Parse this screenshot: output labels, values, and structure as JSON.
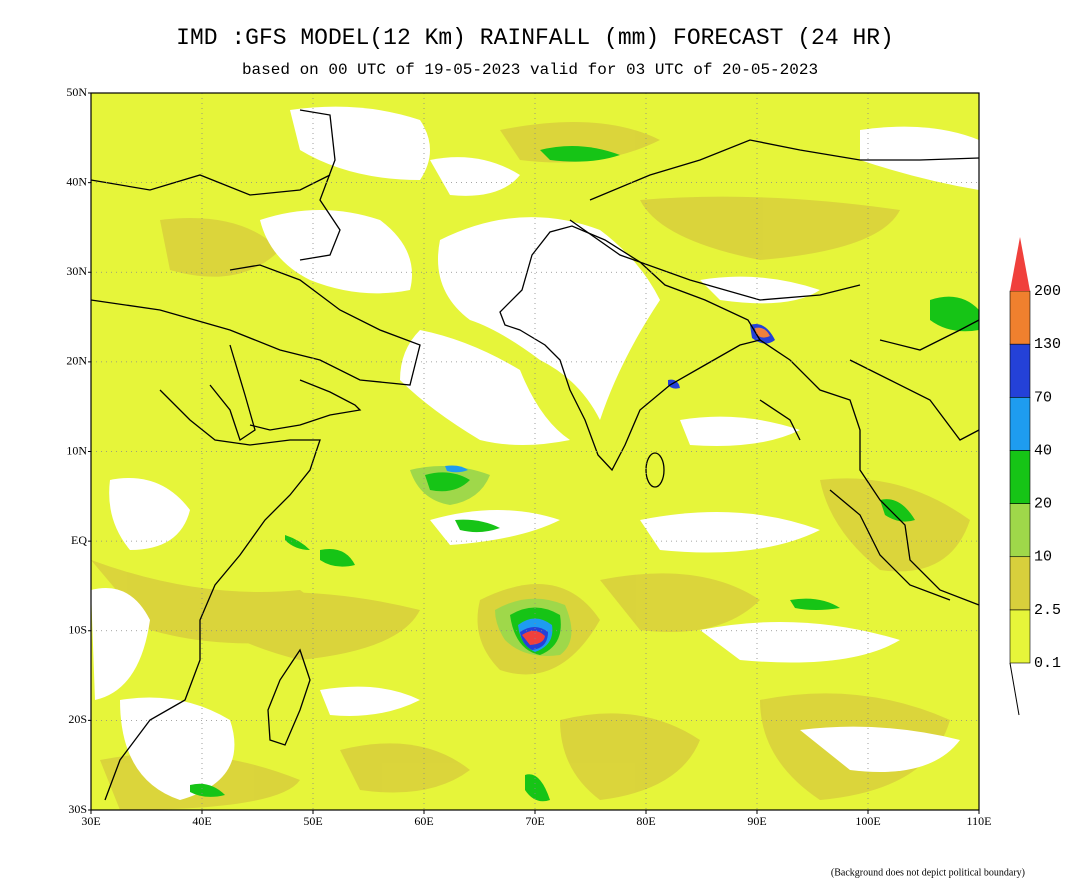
{
  "header": {
    "title": "IMD :GFS MODEL(12 Km) RAINFALL (mm) FORECAST (24 HR)",
    "subtitle": "based on 00 UTC of 19-05-2023 valid for 03 UTC of 20-05-2023"
  },
  "map": {
    "lon_labels": [
      "30E",
      "40E",
      "50E",
      "60E",
      "70E",
      "80E",
      "90E",
      "100E",
      "110E"
    ],
    "lat_labels": [
      "50N",
      "40N",
      "30N",
      "20N",
      "10N",
      "EQ",
      "10S",
      "20S",
      "30S"
    ]
  },
  "colorbar": {
    "levels": [
      0.1,
      2.5,
      10,
      20,
      40,
      70,
      130,
      200
    ],
    "colors": [
      "#e6f53a",
      "#d8cf3c",
      "#9fd84a",
      "#16c416",
      "#1e9cf0",
      "#2441d8",
      "#f0802e",
      "#f0403c"
    ]
  },
  "footnote": "(Background does not depict political boundary)"
}
